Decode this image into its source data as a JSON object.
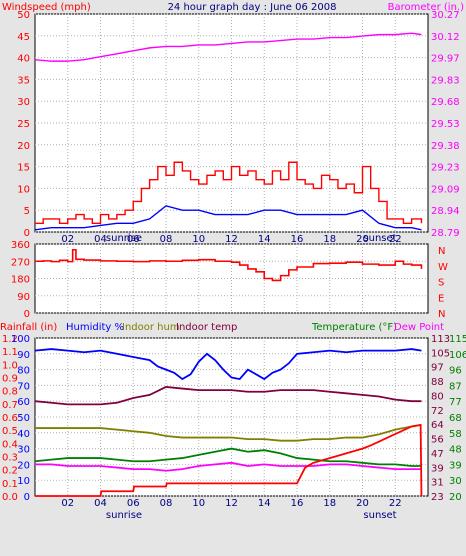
{
  "chart_data": [
    {
      "type": "line",
      "title": "24 hour graph day : June 06 2008",
      "left_axis_label": "Windspeed (mph)",
      "right_axis_label": "Barometer (in.)",
      "left_ticks": [
        "0",
        "5",
        "10",
        "15",
        "20",
        "25",
        "30",
        "35",
        "40",
        "45",
        "50"
      ],
      "left_range": [
        0,
        50
      ],
      "right_ticks": [
        "28.79",
        "28.94",
        "29.09",
        "29.23",
        "29.38",
        "29.53",
        "29.68",
        "29.83",
        "29.97",
        "30.12",
        "30.27"
      ],
      "right_range": [
        28.79,
        30.27
      ],
      "x_ticks": [
        "02",
        "04",
        "06",
        "08",
        "10",
        "12",
        "14",
        "16",
        "18",
        "20",
        "22"
      ],
      "x_range": [
        0,
        24
      ],
      "x_markers": [
        {
          "label": "sunrise",
          "hour": 4.6
        },
        {
          "label": "sunset",
          "hour": 20.6
        }
      ],
      "grid": true,
      "series": [
        {
          "name": "Barometer",
          "axis": "right",
          "color": "#ff00ff",
          "x": [
            0,
            1,
            2,
            3,
            4,
            5,
            6,
            7,
            8,
            9,
            10,
            11,
            12,
            13,
            14,
            15,
            16,
            17,
            18,
            19,
            20,
            21,
            22,
            23,
            23.6
          ],
          "y": [
            29.96,
            29.95,
            29.95,
            29.96,
            29.98,
            30.0,
            30.02,
            30.04,
            30.05,
            30.05,
            30.06,
            30.06,
            30.07,
            30.08,
            30.08,
            30.09,
            30.1,
            30.1,
            30.11,
            30.11,
            30.12,
            30.13,
            30.13,
            30.14,
            30.13
          ]
        },
        {
          "name": "Wind gust",
          "axis": "left",
          "color": "#ff0000",
          "x": [
            0,
            0.5,
            1,
            1.5,
            2,
            2.5,
            3,
            3.5,
            4,
            4.5,
            5,
            5.5,
            6,
            6.5,
            7,
            7.5,
            8,
            8.5,
            9,
            9.5,
            10,
            10.5,
            11,
            11.5,
            12,
            12.5,
            13,
            13.5,
            14,
            14.5,
            15,
            15.5,
            16,
            16.5,
            17,
            17.5,
            18,
            18.5,
            19,
            19.5,
            20,
            20.5,
            21,
            21.5,
            22,
            22.5,
            23,
            23.6
          ],
          "y": [
            2,
            3,
            3,
            2,
            3,
            4,
            3,
            2,
            4,
            3,
            4,
            5,
            7,
            10,
            12,
            15,
            13,
            16,
            14,
            12,
            11,
            13,
            14,
            12,
            15,
            13,
            14,
            12,
            11,
            14,
            12,
            16,
            12,
            11,
            10,
            13,
            12,
            10,
            11,
            9,
            15,
            10,
            7,
            3,
            3,
            2,
            3,
            2
          ]
        },
        {
          "name": "Wind avg",
          "axis": "left",
          "color": "#0000ff",
          "x": [
            0,
            1,
            2,
            3,
            4,
            5,
            6,
            7,
            8,
            9,
            10,
            11,
            12,
            13,
            14,
            15,
            16,
            17,
            18,
            19,
            20,
            21,
            22,
            23,
            23.6
          ],
          "y": [
            0.5,
            1,
            1,
            1,
            1.5,
            2,
            2,
            3,
            6,
            5,
            5,
            4,
            4,
            4,
            5,
            5,
            4,
            4,
            4,
            4,
            5,
            2,
            1,
            1,
            0.5
          ]
        }
      ]
    },
    {
      "type": "line",
      "title": "",
      "left_ticks": [
        "0",
        "90",
        "180",
        "270",
        "360"
      ],
      "left_range": [
        0,
        360
      ],
      "right_ticks": [
        "N",
        "W",
        "S",
        "E",
        "N"
      ],
      "x_range": [
        0,
        24
      ],
      "grid": true,
      "series": [
        {
          "name": "Wind direction",
          "axis": "left",
          "color": "#ff0000",
          "x": [
            0,
            0.5,
            1,
            1.5,
            2,
            2.3,
            2.5,
            3,
            4,
            5,
            6,
            7,
            8,
            9,
            10,
            11,
            12,
            12.5,
            13,
            13.5,
            14,
            14.5,
            15,
            15.5,
            16,
            17,
            18,
            19,
            20,
            21,
            21.5,
            22,
            22.5,
            23,
            23.6
          ],
          "y": [
            270,
            272,
            268,
            275,
            268,
            330,
            280,
            276,
            272,
            270,
            268,
            272,
            270,
            275,
            278,
            270,
            265,
            250,
            230,
            215,
            180,
            170,
            195,
            225,
            240,
            258,
            260,
            265,
            255,
            250,
            250,
            270,
            255,
            250,
            230
          ]
        }
      ]
    },
    {
      "type": "line",
      "title": "",
      "legend": [
        "Rainfall (in)",
        "Humidity %",
        "Indoor hum",
        "Indoor temp",
        "Temperature (°F)",
        "Dew Point"
      ],
      "left_axis_1_ticks": [
        "0.0",
        "0.1",
        "0.2",
        "0.3",
        "0.4",
        "0.5",
        "0.6",
        "0.7",
        "0.8",
        "0.9",
        "1.0",
        "1.1",
        "1.2"
      ],
      "left_axis_2_ticks": [
        "0",
        "10",
        "20",
        "30",
        "40",
        "50",
        "60",
        "70",
        "80",
        "90",
        "100"
      ],
      "right_axis_1_ticks": [
        "23",
        "31",
        "39",
        "47",
        "56",
        "64",
        "72",
        "80",
        "88",
        "97",
        "105",
        "113"
      ],
      "right_axis_2_ticks": [
        "20",
        "30",
        "39",
        "48",
        "58",
        "68",
        "77",
        "87",
        "96",
        "106",
        "115"
      ],
      "x_ticks": [
        "02",
        "04",
        "06",
        "08",
        "10",
        "12",
        "14",
        "16",
        "18",
        "20",
        "22"
      ],
      "x_range": [
        0,
        24
      ],
      "x_markers": [
        {
          "label": "sunrise",
          "hour": 4.6
        },
        {
          "label": "sunset",
          "hour": 20.6
        }
      ],
      "grid": true,
      "series": [
        {
          "name": "Humidity %",
          "axis": "pct",
          "color": "#0000ff",
          "x": [
            0,
            1,
            2,
            3,
            4,
            5,
            6,
            7,
            7.5,
            8,
            8.5,
            9,
            9.5,
            10,
            10.5,
            11,
            11.5,
            12,
            12.5,
            13,
            13.5,
            14,
            14.5,
            15,
            15.5,
            16,
            17,
            18,
            19,
            20,
            21,
            22,
            23,
            23.6
          ],
          "y": [
            92,
            93,
            92,
            91,
            92,
            90,
            88,
            86,
            82,
            80,
            78,
            74,
            77,
            85,
            90,
            86,
            80,
            75,
            74,
            80,
            77,
            74,
            78,
            80,
            84,
            90,
            91,
            92,
            91,
            92,
            92,
            92,
            93,
            92
          ]
        },
        {
          "name": "Indoor temp",
          "axis": "pct",
          "color": "#800040",
          "x": [
            0,
            1,
            2,
            3,
            4,
            5,
            6,
            7,
            8,
            9,
            10,
            11,
            12,
            13,
            14,
            15,
            16,
            17,
            18,
            19,
            20,
            21,
            22,
            23,
            23.6
          ],
          "y": [
            60,
            59,
            58,
            58,
            58,
            59,
            62,
            64,
            69,
            68,
            67,
            67,
            67,
            66,
            66,
            67,
            67,
            67,
            66,
            65,
            64,
            63,
            61,
            60,
            60
          ]
        },
        {
          "name": "Indoor hum",
          "axis": "pct",
          "color": "#808000",
          "x": [
            0,
            1,
            2,
            3,
            4,
            5,
            6,
            7,
            8,
            9,
            10,
            11,
            12,
            13,
            14,
            15,
            16,
            17,
            18,
            19,
            20,
            21,
            22,
            23,
            23.6
          ],
          "y": [
            43,
            43,
            43,
            43,
            43,
            42,
            41,
            40,
            38,
            37,
            37,
            37,
            37,
            36,
            36,
            35,
            35,
            36,
            36,
            37,
            37,
            39,
            42,
            44,
            45
          ]
        },
        {
          "name": "Temperature",
          "axis": "pct",
          "color": "#008000",
          "x": [
            0,
            1,
            2,
            3,
            4,
            5,
            6,
            7,
            8,
            9,
            10,
            11,
            12,
            13,
            14,
            15,
            16,
            17,
            18,
            19,
            20,
            21,
            22,
            23,
            23.6
          ],
          "y": [
            22,
            23,
            24,
            24,
            24,
            23,
            22,
            22,
            23,
            24,
            26,
            28,
            30,
            28,
            29,
            27,
            24,
            23,
            22,
            22,
            21,
            20,
            20,
            19,
            19
          ]
        },
        {
          "name": "Dew Point",
          "axis": "pct",
          "color": "#ff00ff",
          "x": [
            0,
            1,
            2,
            3,
            4,
            5,
            6,
            7,
            8,
            9,
            10,
            11,
            12,
            13,
            14,
            15,
            16,
            17,
            18,
            19,
            20,
            21,
            22,
            23,
            23.6
          ],
          "y": [
            20,
            20,
            19,
            19,
            19,
            18,
            17,
            17,
            16,
            17,
            19,
            20,
            21,
            19,
            20,
            19,
            19,
            19,
            20,
            20,
            19,
            18,
            17,
            17,
            17
          ]
        },
        {
          "name": "Rainfall",
          "axis": "pct",
          "color": "#ff0000",
          "x": [
            0,
            4,
            4.05,
            6,
            6.05,
            8,
            8.05,
            16,
            16.5,
            17,
            18,
            19,
            20,
            20.5,
            23,
            23.55,
            23.6
          ],
          "y": [
            0,
            0,
            3,
            3,
            6,
            6,
            8,
            8,
            18,
            21,
            24,
            27,
            30,
            32,
            44,
            45,
            0
          ]
        }
      ]
    }
  ],
  "colors": {
    "bg": "#e5e5e5",
    "panel": "#ffffff",
    "grid": "#b0b0b0",
    "axis": "#000000",
    "red": "#ff0000",
    "blue": "#0000ff",
    "magenta": "#ff00ff",
    "green": "#008000",
    "olive": "#808000",
    "maroon": "#800040",
    "navy": "#000080"
  }
}
